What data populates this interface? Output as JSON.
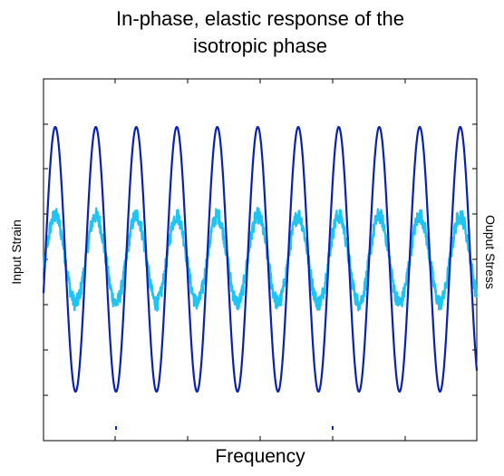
{
  "chart_data": {
    "type": "line",
    "title_lines": [
      "In-phase, elastic response of the",
      "isotropic phase"
    ],
    "xlabel": "Frequency",
    "ylabel_left": "Input Strain",
    "ylabel_right": "Ouput Stress",
    "grid": false,
    "tick_labels_shown": false,
    "series": [
      {
        "color": "#0a1fb4",
        "axis": "left",
        "cycles": 10.7,
        "amplitude": 1.0,
        "noisy": false
      },
      {
        "color": "#1ec4f2",
        "axis": "right",
        "cycles": 10.7,
        "amplitude": 0.33,
        "noisy": true
      }
    ]
  }
}
